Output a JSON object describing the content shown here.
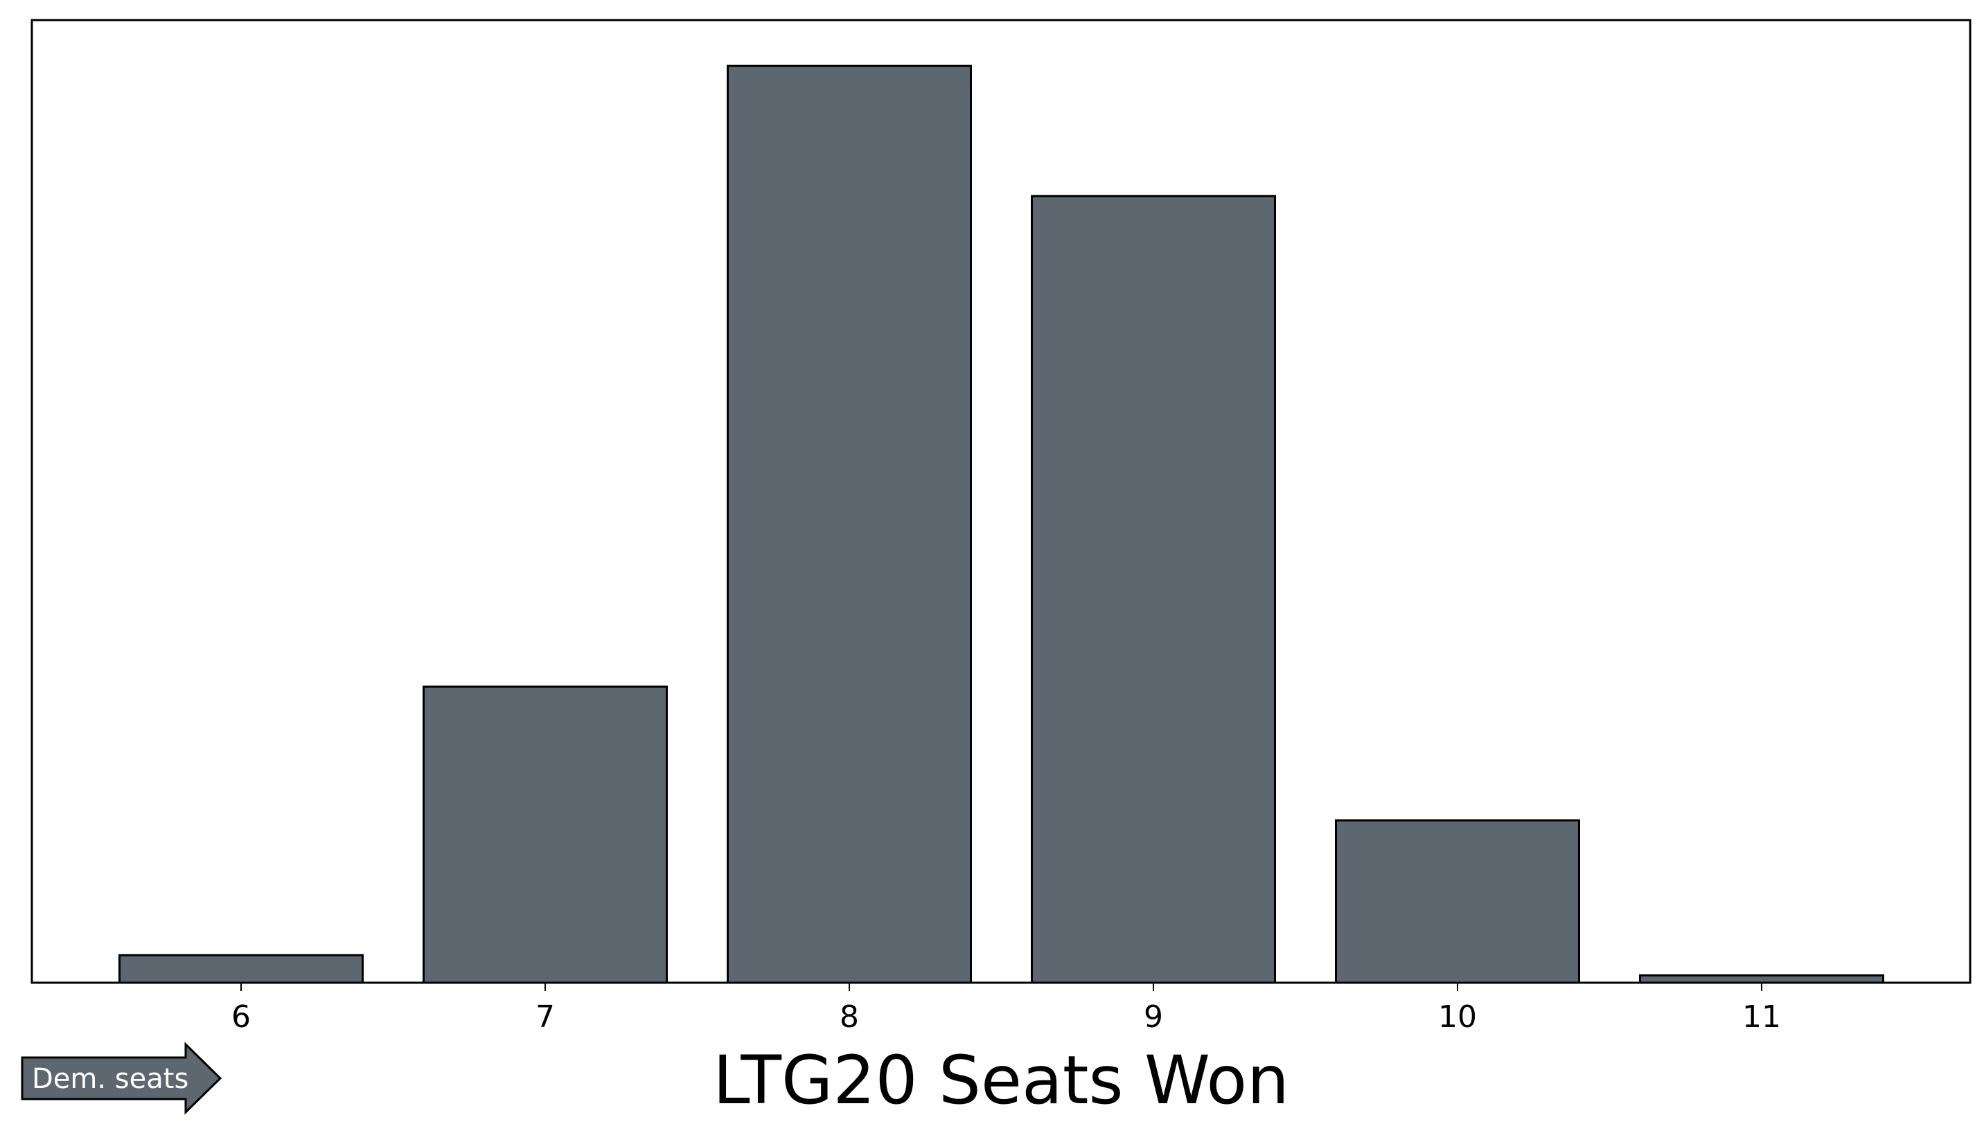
{
  "chart_data": {
    "type": "bar",
    "title": "",
    "xlabel": "LTG20 Seats Won",
    "ylabel": "",
    "categories": [
      "6",
      "7",
      "8",
      "9",
      "10",
      "11"
    ],
    "values": [
      0.03,
      0.323,
      1.0,
      0.858,
      0.177,
      0.008
    ],
    "ylim": [
      0,
      1.05
    ],
    "grid": false,
    "legend": "none",
    "bar_color": "#5c6770",
    "edge_color": "#000000"
  },
  "annotation": {
    "arrow_label": "Dem. seats",
    "arrow_color": "#5c6770"
  }
}
